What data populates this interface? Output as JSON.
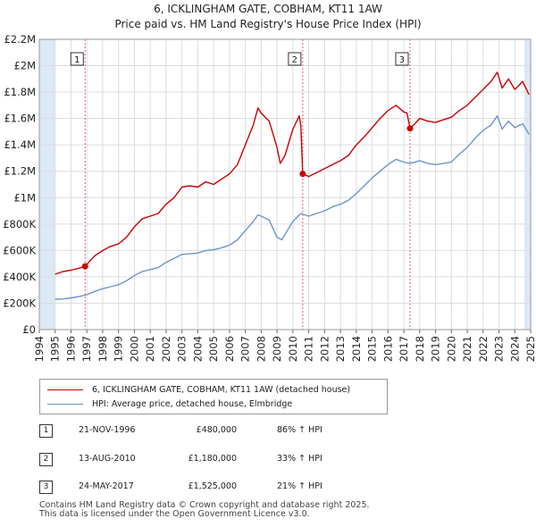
{
  "title": "6, ICKLINGHAM GATE, COBHAM, KT11 1AW",
  "subtitle": "Price paid vs. HM Land Registry's House Price Index (HPI)",
  "colors": {
    "price_line": "#cc0000",
    "hpi_line": "#6a96cc",
    "marker_line": "#e06070",
    "shade": "#dde8f5",
    "grid": "#dddddd"
  },
  "legend": {
    "price_label": "6, ICKLINGHAM GATE, COBHAM, KT11 1AW (detached house)",
    "hpi_label": "HPI: Average price, detached house, Elmbridge"
  },
  "sales": [
    {
      "num": "1",
      "date": "21-NOV-1996",
      "price": "£480,000",
      "hpi": "86% ↑ HPI"
    },
    {
      "num": "2",
      "date": "13-AUG-2010",
      "price": "£1,180,000",
      "hpi": "33% ↑ HPI"
    },
    {
      "num": "3",
      "date": "24-MAY-2017",
      "price": "£1,525,000",
      "hpi": "21% ↑ HPI"
    }
  ],
  "footer": {
    "line1": "Contains HM Land Registry data © Crown copyright and database right 2025.",
    "line2": "This data is licensed under the Open Government Licence v3.0."
  },
  "chart_data": {
    "type": "line",
    "xlim": [
      1994,
      2025
    ],
    "ylim": [
      0,
      2200000
    ],
    "x_ticks": [
      1994,
      1995,
      1996,
      1997,
      1998,
      1999,
      2000,
      2001,
      2002,
      2003,
      2004,
      2005,
      2006,
      2007,
      2008,
      2009,
      2010,
      2011,
      2012,
      2013,
      2014,
      2015,
      2016,
      2017,
      2018,
      2019,
      2020,
      2021,
      2022,
      2023,
      2024,
      2025
    ],
    "y_ticks": [
      {
        "value": 0,
        "label": "£0"
      },
      {
        "value": 200000,
        "label": "£200K"
      },
      {
        "value": 400000,
        "label": "£400K"
      },
      {
        "value": 600000,
        "label": "£600K"
      },
      {
        "value": 800000,
        "label": "£800K"
      },
      {
        "value": 1000000,
        "label": "£1M"
      },
      {
        "value": 1200000,
        "label": "£1.2M"
      },
      {
        "value": 1400000,
        "label": "£1.4M"
      },
      {
        "value": 1600000,
        "label": "£1.6M"
      },
      {
        "value": 1800000,
        "label": "£1.8M"
      },
      {
        "value": 2000000,
        "label": "£2M"
      },
      {
        "value": 2200000,
        "label": "£2.2M"
      }
    ],
    "shaded_ranges": [
      [
        1994,
        1995
      ],
      [
        2024.6,
        2025
      ]
    ],
    "sale_markers": [
      {
        "label": "1",
        "x": 1996.89,
        "y": 480000
      },
      {
        "label": "2",
        "x": 2010.62,
        "y": 1180000
      },
      {
        "label": "3",
        "x": 2017.39,
        "y": 1525000
      }
    ],
    "series": [
      {
        "name": "6, ICKLINGHAM GATE, COBHAM, KT11 1AW (detached house)",
        "points": [
          [
            1995.0,
            420000
          ],
          [
            1995.5,
            440000
          ],
          [
            1996.0,
            450000
          ],
          [
            1996.5,
            465000
          ],
          [
            1996.89,
            480000
          ],
          [
            1997.5,
            560000
          ],
          [
            1998.0,
            600000
          ],
          [
            1998.5,
            630000
          ],
          [
            1999.0,
            650000
          ],
          [
            1999.5,
            700000
          ],
          [
            2000.0,
            780000
          ],
          [
            2000.5,
            840000
          ],
          [
            2001.0,
            860000
          ],
          [
            2001.5,
            880000
          ],
          [
            2002.0,
            950000
          ],
          [
            2002.5,
            1000000
          ],
          [
            2003.0,
            1080000
          ],
          [
            2003.5,
            1090000
          ],
          [
            2004.0,
            1080000
          ],
          [
            2004.5,
            1120000
          ],
          [
            2005.0,
            1100000
          ],
          [
            2005.5,
            1140000
          ],
          [
            2006.0,
            1180000
          ],
          [
            2006.5,
            1250000
          ],
          [
            2007.0,
            1400000
          ],
          [
            2007.5,
            1550000
          ],
          [
            2007.8,
            1680000
          ],
          [
            2008.0,
            1640000
          ],
          [
            2008.5,
            1580000
          ],
          [
            2009.0,
            1380000
          ],
          [
            2009.2,
            1260000
          ],
          [
            2009.5,
            1320000
          ],
          [
            2010.0,
            1520000
          ],
          [
            2010.4,
            1620000
          ],
          [
            2010.5,
            1550000
          ],
          [
            2010.62,
            1180000
          ],
          [
            2011.0,
            1160000
          ],
          [
            2011.5,
            1190000
          ],
          [
            2012.0,
            1220000
          ],
          [
            2012.5,
            1250000
          ],
          [
            2013.0,
            1280000
          ],
          [
            2013.5,
            1320000
          ],
          [
            2014.0,
            1400000
          ],
          [
            2014.5,
            1460000
          ],
          [
            2015.0,
            1530000
          ],
          [
            2015.5,
            1600000
          ],
          [
            2016.0,
            1660000
          ],
          [
            2016.5,
            1700000
          ],
          [
            2017.0,
            1650000
          ],
          [
            2017.2,
            1640000
          ],
          [
            2017.39,
            1525000
          ],
          [
            2017.7,
            1560000
          ],
          [
            2018.0,
            1600000
          ],
          [
            2018.5,
            1580000
          ],
          [
            2019.0,
            1570000
          ],
          [
            2019.5,
            1590000
          ],
          [
            2020.0,
            1610000
          ],
          [
            2020.5,
            1660000
          ],
          [
            2021.0,
            1700000
          ],
          [
            2021.5,
            1760000
          ],
          [
            2022.0,
            1820000
          ],
          [
            2022.5,
            1880000
          ],
          [
            2022.9,
            1950000
          ],
          [
            2023.2,
            1830000
          ],
          [
            2023.6,
            1900000
          ],
          [
            2024.0,
            1820000
          ],
          [
            2024.5,
            1880000
          ],
          [
            2024.9,
            1780000
          ]
        ]
      },
      {
        "name": "HPI: Average price, detached house, Elmbridge",
        "points": [
          [
            1995.0,
            230000
          ],
          [
            1995.5,
            232000
          ],
          [
            1996.0,
            240000
          ],
          [
            1996.5,
            250000
          ],
          [
            1997.0,
            265000
          ],
          [
            1997.5,
            290000
          ],
          [
            1998.0,
            310000
          ],
          [
            1998.5,
            325000
          ],
          [
            1999.0,
            340000
          ],
          [
            1999.5,
            370000
          ],
          [
            2000.0,
            410000
          ],
          [
            2000.5,
            440000
          ],
          [
            2001.0,
            455000
          ],
          [
            2001.5,
            470000
          ],
          [
            2002.0,
            510000
          ],
          [
            2002.5,
            540000
          ],
          [
            2003.0,
            570000
          ],
          [
            2003.5,
            575000
          ],
          [
            2004.0,
            580000
          ],
          [
            2004.5,
            600000
          ],
          [
            2005.0,
            605000
          ],
          [
            2005.5,
            620000
          ],
          [
            2006.0,
            640000
          ],
          [
            2006.5,
            680000
          ],
          [
            2007.0,
            750000
          ],
          [
            2007.5,
            820000
          ],
          [
            2007.8,
            870000
          ],
          [
            2008.0,
            860000
          ],
          [
            2008.5,
            830000
          ],
          [
            2009.0,
            700000
          ],
          [
            2009.3,
            680000
          ],
          [
            2009.7,
            760000
          ],
          [
            2010.0,
            820000
          ],
          [
            2010.5,
            880000
          ],
          [
            2011.0,
            860000
          ],
          [
            2011.5,
            880000
          ],
          [
            2012.0,
            900000
          ],
          [
            2012.5,
            930000
          ],
          [
            2013.0,
            950000
          ],
          [
            2013.5,
            980000
          ],
          [
            2014.0,
            1030000
          ],
          [
            2014.5,
            1090000
          ],
          [
            2015.0,
            1150000
          ],
          [
            2015.5,
            1200000
          ],
          [
            2016.0,
            1250000
          ],
          [
            2016.5,
            1290000
          ],
          [
            2017.0,
            1270000
          ],
          [
            2017.39,
            1260000
          ],
          [
            2017.7,
            1270000
          ],
          [
            2018.0,
            1280000
          ],
          [
            2018.5,
            1260000
          ],
          [
            2019.0,
            1250000
          ],
          [
            2019.5,
            1260000
          ],
          [
            2020.0,
            1270000
          ],
          [
            2020.5,
            1330000
          ],
          [
            2021.0,
            1380000
          ],
          [
            2021.5,
            1450000
          ],
          [
            2022.0,
            1510000
          ],
          [
            2022.5,
            1550000
          ],
          [
            2022.9,
            1620000
          ],
          [
            2023.2,
            1520000
          ],
          [
            2023.6,
            1580000
          ],
          [
            2024.0,
            1530000
          ],
          [
            2024.5,
            1560000
          ],
          [
            2024.9,
            1480000
          ]
        ]
      }
    ]
  }
}
